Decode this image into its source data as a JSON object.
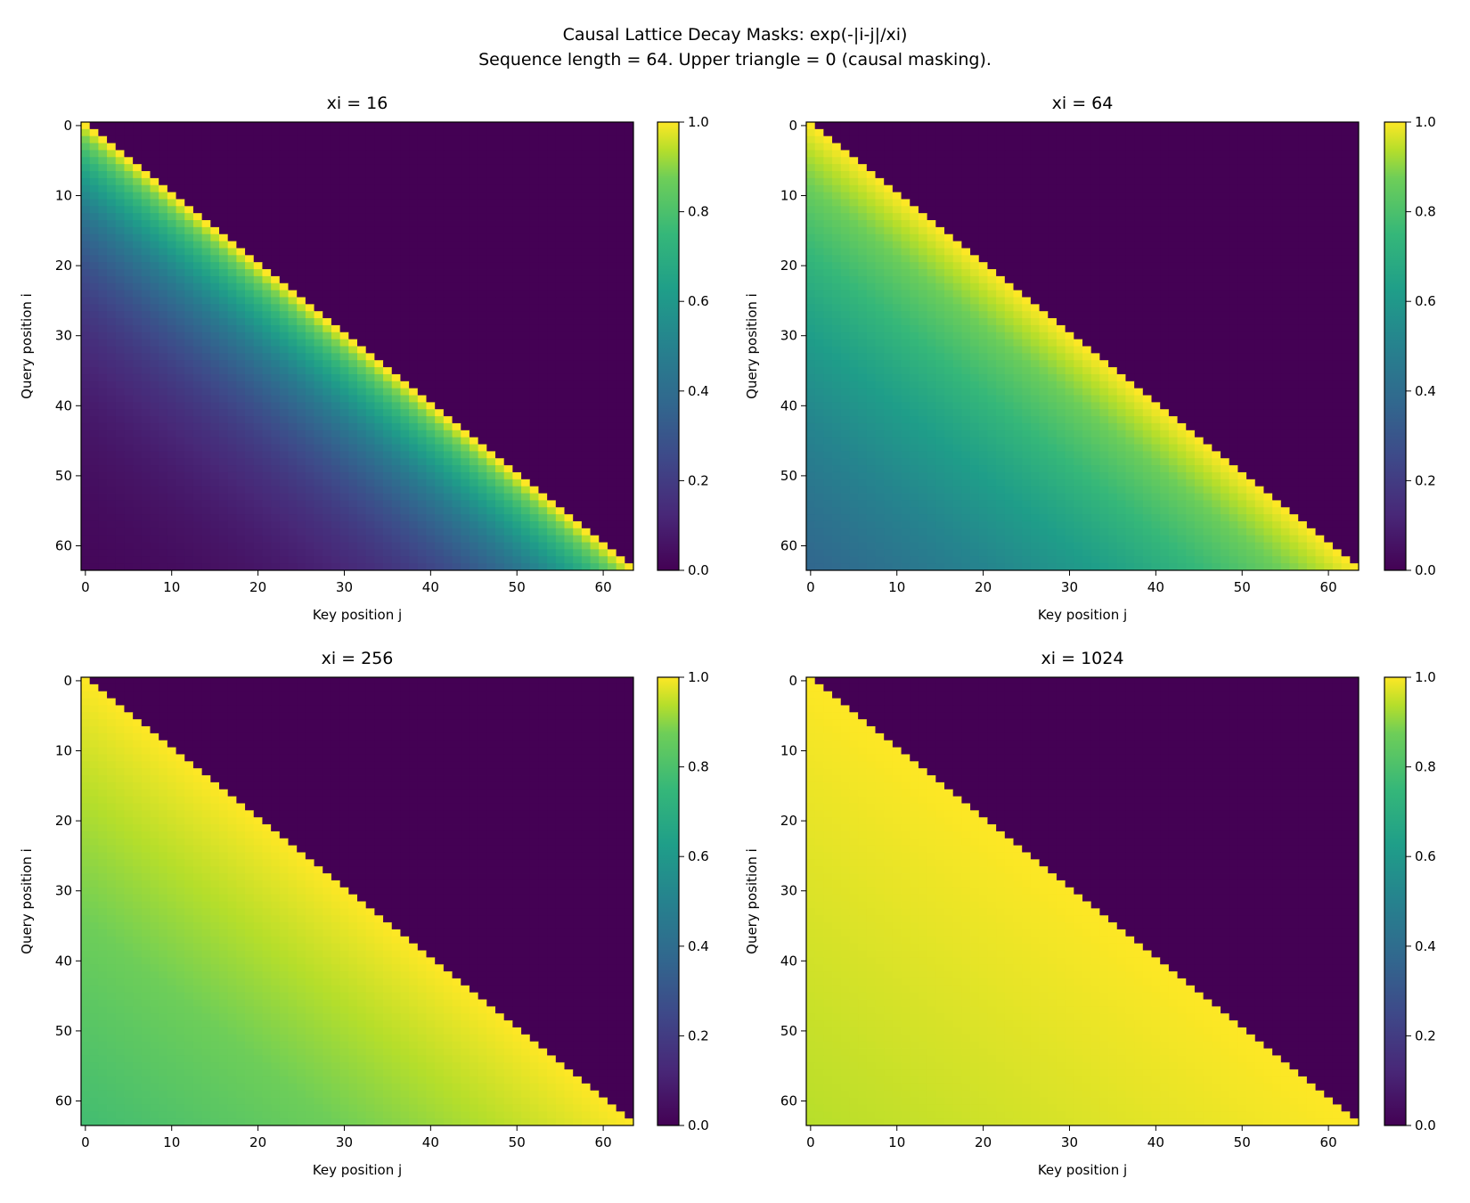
{
  "chart_data": {
    "type": "heatmap",
    "title": "Causal Lattice Decay Masks: exp(-|i-j|/xi)",
    "subtitle": "Sequence length = 64. Upper triangle = 0 (causal masking).",
    "formula": "exp(-|i-j|/xi)",
    "sequence_length": 64,
    "mask": "upper triangle = 0",
    "colormap": "viridis",
    "panels": [
      {
        "title": "xi = 16",
        "xi": 16
      },
      {
        "title": "xi = 64",
        "xi": 64
      },
      {
        "title": "xi = 256",
        "xi": 256
      },
      {
        "title": "xi = 1024",
        "xi": 1024
      }
    ],
    "xlabel": "Key position j",
    "ylabel": "Query position i",
    "xticks": [
      0,
      10,
      20,
      30,
      40,
      50,
      60
    ],
    "yticks": [
      0,
      10,
      20,
      30,
      40,
      50,
      60
    ],
    "xlim": [
      -0.5,
      63.5
    ],
    "ylim": [
      63.5,
      -0.5
    ],
    "colorbar": {
      "ticks": [
        "0.0",
        "0.2",
        "0.4",
        "0.6",
        "0.8",
        "1.0"
      ],
      "range": [
        0,
        1
      ]
    }
  }
}
